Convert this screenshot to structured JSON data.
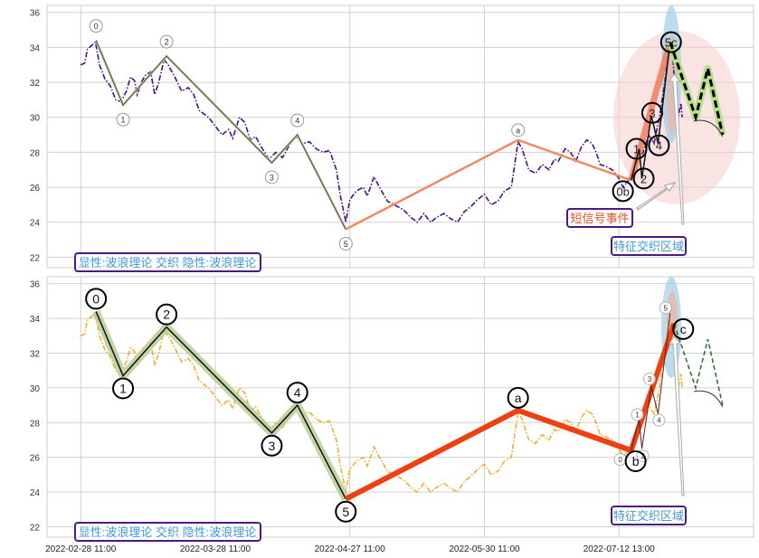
{
  "chart_data": [
    {
      "type": "line",
      "panel": "top",
      "xlim": [
        -25,
        500
      ],
      "ylim": [
        21.4,
        36.4
      ],
      "yticks": [
        22,
        24,
        26,
        28,
        30,
        32,
        34,
        36
      ],
      "xticks": [
        0,
        100,
        200,
        300,
        400
      ],
      "grid": true,
      "price_color": "#4b0f80",
      "price": [
        [
          0,
          33
        ],
        [
          3,
          33.1
        ],
        [
          5,
          33.9
        ],
        [
          8,
          34.1
        ],
        [
          11,
          34.3
        ],
        [
          14,
          33.0
        ],
        [
          18,
          32.2
        ],
        [
          22,
          31.8
        ],
        [
          26,
          31.0
        ],
        [
          30,
          30.9
        ],
        [
          34,
          31.5
        ],
        [
          37,
          32.3
        ],
        [
          40,
          32.1
        ],
        [
          42,
          31.3
        ],
        [
          45,
          32.0
        ],
        [
          48,
          32.4
        ],
        [
          52,
          32.6
        ],
        [
          55,
          31.3
        ],
        [
          58,
          32.0
        ],
        [
          62,
          33.3
        ],
        [
          65,
          33.0
        ],
        [
          70,
          32.3
        ],
        [
          75,
          31.5
        ],
        [
          80,
          31.7
        ],
        [
          84,
          31.3
        ],
        [
          88,
          30.4
        ],
        [
          95,
          30.0
        ],
        [
          100,
          29.5
        ],
        [
          105,
          29.0
        ],
        [
          110,
          29.3
        ],
        [
          113,
          28.8
        ],
        [
          118,
          30.0
        ],
        [
          122,
          29.7
        ],
        [
          126,
          28.7
        ],
        [
          130,
          28.9
        ],
        [
          135,
          28.2
        ],
        [
          140,
          27.6
        ],
        [
          145,
          28.0
        ],
        [
          150,
          27.7
        ],
        [
          155,
          28.4
        ],
        [
          160,
          28.9
        ],
        [
          165,
          28.5
        ],
        [
          170,
          28.6
        ],
        [
          175,
          28.2
        ],
        [
          180,
          28.0
        ],
        [
          185,
          28.1
        ],
        [
          190,
          27.0
        ],
        [
          193,
          25.5
        ],
        [
          197,
          24.0
        ],
        [
          200,
          25.3
        ],
        [
          205,
          25.8
        ],
        [
          210,
          26.0
        ],
        [
          213,
          25.5
        ],
        [
          218,
          26.6
        ],
        [
          222,
          26.0
        ],
        [
          228,
          25.2
        ],
        [
          233,
          25.0
        ],
        [
          240,
          24.7
        ],
        [
          245,
          24.3
        ],
        [
          250,
          24.0
        ],
        [
          255,
          24.5
        ],
        [
          260,
          24.0
        ],
        [
          265,
          24.3
        ],
        [
          270,
          24.5
        ],
        [
          275,
          24.2
        ],
        [
          280,
          24.0
        ],
        [
          285,
          24.6
        ],
        [
          290,
          24.9
        ],
        [
          295,
          25.3
        ],
        [
          300,
          25.6
        ],
        [
          305,
          25.0
        ],
        [
          310,
          25.2
        ],
        [
          315,
          25.8
        ],
        [
          320,
          26.0
        ],
        [
          325,
          28.6
        ],
        [
          328,
          28.2
        ],
        [
          333,
          27.0
        ],
        [
          338,
          26.8
        ],
        [
          343,
          27.3
        ],
        [
          348,
          27.0
        ],
        [
          352,
          27.6
        ],
        [
          355,
          27.5
        ],
        [
          360,
          28.2
        ],
        [
          364,
          28.0
        ],
        [
          368,
          27.5
        ],
        [
          372,
          28.3
        ],
        [
          376,
          28.7
        ],
        [
          380,
          28.5
        ],
        [
          383,
          28.0
        ],
        [
          386,
          27.3
        ],
        [
          390,
          27.2
        ],
        [
          395,
          27.0
        ],
        [
          400,
          26.5
        ],
        [
          403,
          26.0
        ],
        [
          407,
          26.4
        ],
        [
          410,
          26.8
        ],
        [
          414,
          27.6
        ],
        [
          418,
          28.0
        ],
        [
          422,
          29.0
        ],
        [
          426,
          28.5
        ],
        [
          430,
          30.0
        ],
        [
          434,
          32.0
        ],
        [
          437,
          33.8
        ],
        [
          440,
          33.5
        ],
        [
          442,
          31.0
        ],
        [
          444,
          30.0
        ],
        [
          446,
          30.8
        ],
        [
          447,
          30.0
        ]
      ],
      "main_wave": [
        {
          "x": 11.4,
          "y": 34.4,
          "label": "0"
        },
        {
          "x": 31.5,
          "y": 30.7,
          "label": "1"
        },
        {
          "x": 63.8,
          "y": 33.5,
          "label": "2"
        },
        {
          "x": 142,
          "y": 27.4,
          "label": "3"
        },
        {
          "x": 161,
          "y": 29.0,
          "label": "4"
        },
        {
          "x": 197,
          "y": 23.6,
          "label": "5"
        }
      ],
      "correction": [
        {
          "x": 197,
          "y": 23.6
        },
        {
          "x": 325,
          "y": 28.7,
          "label": "a"
        },
        {
          "x": 409,
          "y": 26.4
        }
      ],
      "sub_wave": [
        {
          "x": 409,
          "y": 26.4,
          "label": "0b"
        },
        {
          "x": 415,
          "y": 28.2,
          "label": "1"
        },
        {
          "x": 417,
          "y": 26.5,
          "label": "2"
        },
        {
          "x": 424,
          "y": 30.1,
          "label": "3"
        },
        {
          "x": 429,
          "y": 28.5,
          "label": "4"
        },
        {
          "x": 438,
          "y": 34.3,
          "label": "5c"
        }
      ],
      "projection": [
        {
          "x": 438,
          "y": 34.3
        },
        {
          "x": 457,
          "y": 30.0
        },
        {
          "x": 466,
          "y": 32.8
        },
        {
          "x": 477,
          "y": 29.0
        }
      ],
      "annotations": {
        "short_signal": "短信号事件",
        "zone": "特征交织区域",
        "legend": "显性:波浪理论 交织 隐性:波浪理论"
      }
    },
    {
      "type": "line",
      "panel": "bottom",
      "xlim": [
        -25,
        500
      ],
      "ylim": [
        21.4,
        36.4
      ],
      "yticks": [
        22,
        24,
        26,
        28,
        30,
        32,
        34,
        36
      ],
      "xticks": [
        0,
        100,
        200,
        300,
        400
      ],
      "xtick_labels": [
        "2022-02-28 11:00",
        "2022-03-28 11:00",
        "2022-04-27 11:00",
        "2022-05-30 11:00",
        "2022-07-12 13:00"
      ],
      "grid": true,
      "price_color": "#f0b030",
      "main_wave": [
        {
          "x": 11.4,
          "y": 34.4,
          "label": "0"
        },
        {
          "x": 31.5,
          "y": 30.7,
          "label": "1"
        },
        {
          "x": 63.8,
          "y": 33.5,
          "label": "2"
        },
        {
          "x": 142,
          "y": 27.4,
          "label": "3"
        },
        {
          "x": 161,
          "y": 29.0,
          "label": "4"
        },
        {
          "x": 197,
          "y": 23.6,
          "label": "5"
        }
      ],
      "correction": [
        {
          "x": 197,
          "y": 23.6
        },
        {
          "x": 325,
          "y": 28.7,
          "label": "a"
        },
        {
          "x": 409,
          "y": 26.4,
          "label": "b"
        },
        {
          "x": 441,
          "y": 33.7,
          "label": "c"
        }
      ],
      "sub_wave": [
        {
          "x": 409,
          "y": 26.4,
          "label": "0"
        },
        {
          "x": 415,
          "y": 28.2,
          "label": "1"
        },
        {
          "x": 417,
          "y": 26.5,
          "label": "2"
        },
        {
          "x": 424,
          "y": 30.1,
          "label": "3"
        },
        {
          "x": 429,
          "y": 28.5,
          "label": "4"
        },
        {
          "x": 438,
          "y": 34.3,
          "label": "5"
        }
      ],
      "projection": [
        {
          "x": 441,
          "y": 33.7
        },
        {
          "x": 457,
          "y": 30.0
        },
        {
          "x": 466,
          "y": 32.8
        },
        {
          "x": 477,
          "y": 29.0
        }
      ],
      "annotations": {
        "zone": "特征交织区域",
        "legend": "显性:波浪理论 交织 隐性:波浪理论"
      }
    }
  ]
}
